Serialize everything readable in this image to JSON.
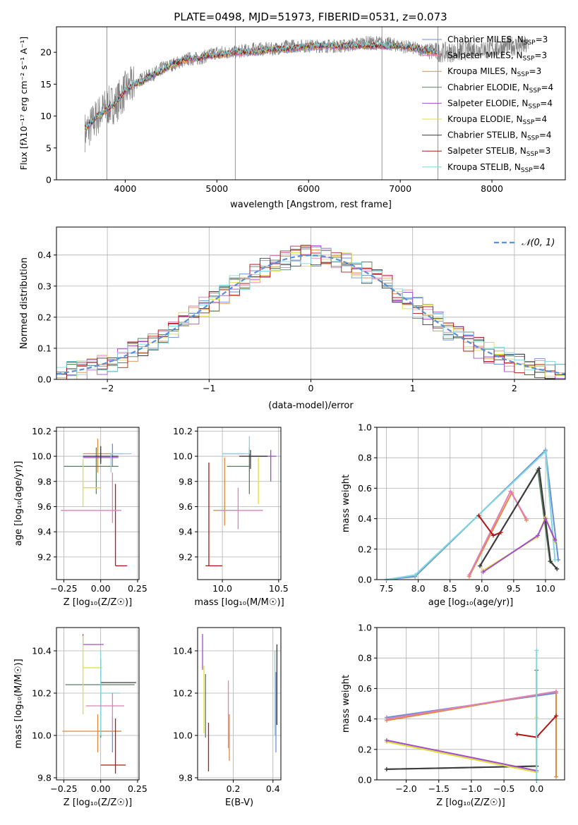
{
  "figure": {
    "title": "PLATE=0498, MJD=51973, FIBERID=0531, z=0.073"
  },
  "series_styles": [
    {
      "name": "Chabrier MILES",
      "nssp": "3",
      "color": "#6b8ed8"
    },
    {
      "name": "Salpeter MILES",
      "nssp": "3",
      "color": "#e07fb8"
    },
    {
      "name": "Kroupa MILES",
      "nssp": "3",
      "color": "#e58a3c"
    },
    {
      "name": "Chabrier ELODIE",
      "nssp": "4",
      "color": "#5c7e60"
    },
    {
      "name": "Salpeter ELODIE",
      "nssp": "4",
      "color": "#a24ec9"
    },
    {
      "name": "Kroupa ELODIE",
      "nssp": "4",
      "color": "#dede3c"
    },
    {
      "name": "Chabrier STELIB",
      "nssp": "4",
      "color": "#3a3a3a"
    },
    {
      "name": "Salpeter STELIB",
      "nssp": "3",
      "color": "#b01818"
    },
    {
      "name": "Kroupa STELIB",
      "nssp": "4",
      "color": "#7fd6dc"
    }
  ],
  "chart_data": [
    {
      "id": "spectrum",
      "type": "line",
      "title": "PLATE=0498, MJD=51973, FIBERID=0531, z=0.073",
      "xlabel": "wavelength [Angstrom, rest frame]",
      "ylabel": "Flux [fλ10⁻¹⁷ erg cm⁻² s⁻¹ A⁻¹]",
      "xlim": [
        3250,
        8800
      ],
      "ylim": [
        0,
        24
      ],
      "xticks": [
        "4000",
        "5000",
        "6000",
        "7000",
        "8000"
      ],
      "yticks": [
        "0",
        "5",
        "10",
        "15",
        "20"
      ],
      "legend": "right",
      "data_color": "#7f7f7f",
      "data_curve": {
        "x": [
          3560,
          3600,
          3700,
          3800,
          3900,
          4000,
          4100,
          4200,
          4300,
          4400,
          4500,
          4600,
          4700,
          4800,
          4900,
          5000,
          5200,
          5400,
          5600,
          5800,
          6000,
          6200,
          6400,
          6600,
          6800,
          7000,
          7200,
          7400,
          7600,
          7800,
          8000,
          8200,
          8400
        ],
        "y": [
          7.5,
          8,
          10,
          11.5,
          12,
          14,
          15,
          16,
          16.5,
          17.5,
          18,
          18.5,
          19,
          19,
          19.5,
          20,
          20,
          20.5,
          20.5,
          21,
          21,
          21,
          21,
          21.5,
          21.5,
          21,
          20.5,
          20,
          20,
          20.5,
          20.5,
          21,
          21
        ]
      },
      "model_curve": {
        "x": [
          3560,
          3600,
          3700,
          3800,
          3900,
          4000,
          4100,
          4200,
          4300,
          4400,
          4500,
          4600,
          4700,
          4800,
          4900,
          5000,
          5200,
          5400,
          5600,
          5800,
          6000,
          6200,
          6400,
          6600,
          6800,
          7000,
          7200,
          7400
        ],
        "y": [
          8,
          8.5,
          10,
          11,
          12,
          14,
          15,
          15.5,
          16.5,
          17,
          18,
          18.5,
          19,
          19,
          19.5,
          19.5,
          20,
          20,
          20.5,
          20.5,
          21,
          21,
          21,
          21,
          21,
          21,
          20.5,
          20
        ]
      }
    },
    {
      "id": "residuals",
      "type": "histogram",
      "xlabel": "(data-model)/error",
      "ylabel": "Normed distribution",
      "xlim": [
        -2.5,
        2.5
      ],
      "ylim": [
        0,
        0.49
      ],
      "xticks": [
        "−2",
        "−1",
        "0",
        "1",
        "2"
      ],
      "yticks": [
        "0.0",
        "0.1",
        "0.2",
        "0.3",
        "0.4"
      ],
      "legend_label": "𝒩(0, 1)",
      "legend_color": "#5b8fd6"
    },
    {
      "id": "age-vs-Z",
      "type": "errorbar",
      "xlabel": "Z [log₁₀(Z/Z☉)]",
      "ylabel": "age  [log₁₀(age/yr)]",
      "xlim": [
        -0.3,
        0.26
      ],
      "ylim": [
        9.02,
        10.23
      ],
      "xticks": [
        -0.25,
        0.0,
        0.25
      ],
      "xticklabels": [
        "−0.25",
        "0.00",
        "0.25"
      ],
      "yticks": [
        9.2,
        9.4,
        9.6,
        9.8,
        10.0,
        10.2
      ],
      "yticklabels": [
        "9.2",
        "9.4",
        "9.6",
        "9.8",
        "10.0",
        "10.2"
      ],
      "points": [
        {
          "s": 0,
          "x": 0.08,
          "y": 10.02,
          "xe": [
            0.05,
            0.07
          ],
          "ye": [
            0.1,
            0.08
          ]
        },
        {
          "s": 2,
          "x": -0.02,
          "y": 10.02,
          "xe": [
            0.1,
            0.1
          ],
          "ye": [
            0.15,
            0.12
          ]
        },
        {
          "s": 3,
          "x": -0.03,
          "y": 9.92,
          "xe": [
            0.22,
            0.15
          ],
          "ye": [
            0.22,
            0.15
          ]
        },
        {
          "s": 4,
          "x": 0.0,
          "y": 9.99,
          "xe": [
            0.12,
            0.12
          ],
          "ye": [
            0.03,
            0.04
          ]
        },
        {
          "s": 5,
          "x": -0.12,
          "y": 9.75,
          "xe": [
            0.0,
            0.12
          ],
          "ye": [
            0.15,
            0.23
          ]
        },
        {
          "s": 6,
          "x": 0.0,
          "y": 10.0,
          "xe": [
            0.12,
            0.12
          ],
          "ye": [
            0.06,
            0.08
          ]
        },
        {
          "s": 7,
          "x": 0.1,
          "y": 9.13,
          "xe": [
            0.0,
            0.08
          ],
          "ye": [
            0.0,
            0.65
          ]
        },
        {
          "s": 8,
          "x": 0.07,
          "y": 10.02,
          "xe": [
            0.0,
            0.14
          ],
          "ye": [
            0.15,
            0.0
          ]
        },
        {
          "s": 1,
          "x": 0.08,
          "y": 9.57,
          "xe": [
            0.35,
            0.06
          ],
          "ye": [
            0.1,
            0.3
          ]
        }
      ]
    },
    {
      "id": "age-vs-mass",
      "type": "errorbar",
      "xlabel": "mass [log₁₀(M/M☉)]",
      "ylabel": "",
      "xlim": [
        9.78,
        10.52
      ],
      "ylim": [
        9.02,
        10.23
      ],
      "xticks": [
        10.0,
        10.5
      ],
      "xticklabels": [
        "10.0",
        "10.5"
      ],
      "yticks": [
        9.2,
        9.4,
        9.6,
        9.8,
        10.0,
        10.2
      ],
      "yticklabels": [
        "9.2",
        "9.4",
        "9.6",
        "9.8",
        "10.0",
        "10.2"
      ],
      "points": [
        {
          "s": 0,
          "x": 10.2,
          "y": 10.02,
          "xe": [
            0.2,
            0.0
          ],
          "ye": [
            0.0,
            0.0
          ]
        },
        {
          "s": 2,
          "x": 10.02,
          "y": 9.57,
          "xe": [
            0.1,
            0.12
          ],
          "ye": [
            0.12,
            0.42
          ]
        },
        {
          "s": 3,
          "x": 10.24,
          "y": 9.92,
          "xe": [
            0.2,
            0.0
          ],
          "ye": [
            0.22,
            0.15
          ]
        },
        {
          "s": 4,
          "x": 10.43,
          "y": 10.0,
          "xe": [
            0.17,
            0.05
          ],
          "ye": [
            0.2,
            0.05
          ]
        },
        {
          "s": 5,
          "x": 10.32,
          "y": 9.99,
          "xe": [
            0.0,
            0.0
          ],
          "ye": [
            0.37,
            0.0
          ]
        },
        {
          "s": 6,
          "x": 10.25,
          "y": 10.0,
          "xe": [
            0.1,
            0.15
          ],
          "ye": [
            0.1,
            0.05
          ]
        },
        {
          "s": 7,
          "x": 9.88,
          "y": 9.13,
          "xe": [
            0.03,
            0.12
          ],
          "ye": [
            0.0,
            0.82
          ]
        },
        {
          "s": 8,
          "x": 10.24,
          "y": 10.02,
          "xe": [
            0.24,
            0.0
          ],
          "ye": [
            0.0,
            0.14
          ]
        },
        {
          "s": 1,
          "x": 10.14,
          "y": 9.57,
          "xe": [
            0.18,
            0.22
          ],
          "ye": [
            0.15,
            0.18
          ]
        }
      ]
    },
    {
      "id": "weight-vs-age",
      "type": "line",
      "xlabel": "age  [log₁₀(age/yr)]",
      "ylabel": "mass weight",
      "xlim": [
        7.35,
        10.3
      ],
      "ylim": [
        0,
        1
      ],
      "xticks": [
        7.5,
        8.0,
        8.5,
        9.0,
        9.5,
        10.0
      ],
      "xticklabels": [
        "7.5",
        "8.0",
        "8.5",
        "9.0",
        "9.5",
        "10.0"
      ],
      "yticks": [
        0.0,
        0.2,
        0.4,
        0.6,
        0.8,
        1.0
      ],
      "yticklabels": [
        "0.0",
        "0.2",
        "0.4",
        "0.6",
        "0.8",
        "1.0"
      ],
      "series": [
        {
          "s": 0,
          "x": [
            7.5,
            7.95,
            10.0,
            10.2
          ],
          "y": [
            0.0,
            0.02,
            0.85,
            0.13
          ]
        },
        {
          "s": 8,
          "x": [
            7.5,
            7.95,
            10.0,
            10.15
          ],
          "y": [
            0.0,
            0.03,
            0.84,
            0.13
          ]
        },
        {
          "s": 2,
          "x": [
            8.8,
            9.47,
            9.7
          ],
          "y": [
            0.02,
            0.57,
            0.39
          ]
        },
        {
          "s": 1,
          "x": [
            8.8,
            9.45,
            9.7
          ],
          "y": [
            0.03,
            0.58,
            0.4
          ]
        },
        {
          "s": 3,
          "x": [
            8.97,
            9.88,
            10.07,
            10.18
          ],
          "y": [
            0.09,
            0.72,
            0.12,
            0.07
          ]
        },
        {
          "s": 6,
          "x": [
            8.97,
            9.9,
            10.08,
            10.18
          ],
          "y": [
            0.09,
            0.73,
            0.12,
            0.07
          ]
        },
        {
          "s": 5,
          "x": [
            9.02,
            9.87,
            10.0,
            10.15
          ],
          "y": [
            0.06,
            0.28,
            0.41,
            0.25
          ]
        },
        {
          "s": 4,
          "x": [
            9.02,
            9.88,
            10.0,
            10.15
          ],
          "y": [
            0.05,
            0.29,
            0.4,
            0.26
          ]
        },
        {
          "s": 7,
          "x": [
            8.95,
            9.18,
            9.3
          ],
          "y": [
            0.42,
            0.29,
            0.31
          ]
        }
      ]
    },
    {
      "id": "mass-vs-Z",
      "type": "errorbar",
      "xlabel": "Z [log₁₀(Z/Z☉)]",
      "ylabel": "mass [log₁₀(M/M☉)]",
      "xlim": [
        -0.3,
        0.26
      ],
      "ylim": [
        9.79,
        10.51
      ],
      "xticks": [
        -0.25,
        0.0,
        0.25
      ],
      "xticklabels": [
        "−0.25",
        "0.00",
        "0.25"
      ],
      "yticks": [
        9.8,
        10.0,
        10.2,
        10.4
      ],
      "yticklabels": [
        "9.8",
        "10.0",
        "10.2",
        "10.4"
      ],
      "points": [
        {
          "s": 0,
          "x": 0.08,
          "y": 10.02,
          "xe": [
            0.1,
            0.06
          ],
          "ye": [
            0.1,
            0.07
          ]
        },
        {
          "s": 2,
          "x": -0.02,
          "y": 10.02,
          "xe": [
            0.24,
            0.16
          ],
          "ye": [
            0.1,
            0.08
          ]
        },
        {
          "s": 3,
          "x": 0.0,
          "y": 10.24,
          "xe": [
            0.24,
            0.23
          ],
          "ye": [
            0.25,
            0.12
          ]
        },
        {
          "s": 4,
          "x": -0.12,
          "y": 10.43,
          "xe": [
            0.0,
            0.14
          ],
          "ye": [
            0.0,
            0.05
          ]
        },
        {
          "s": 5,
          "x": -0.12,
          "y": 10.32,
          "xe": [
            0.0,
            0.13
          ],
          "ye": [
            0.22,
            0.15
          ]
        },
        {
          "s": 6,
          "x": 0.0,
          "y": 10.25,
          "xe": [
            0.0,
            0.24
          ],
          "ye": [
            0.0,
            0.0
          ]
        },
        {
          "s": 7,
          "x": 0.1,
          "y": 9.86,
          "xe": [
            0.1,
            0.07
          ],
          "ye": [
            0.04,
            0.22
          ]
        },
        {
          "s": 8,
          "x": 0.0,
          "y": 10.2,
          "xe": [
            0.0,
            0.13
          ],
          "ye": [
            0.2,
            0.2
          ]
        },
        {
          "s": 1,
          "x": 0.08,
          "y": 10.14,
          "xe": [
            0.18,
            0.08
          ],
          "ye": [
            0.12,
            0.06
          ]
        }
      ]
    },
    {
      "id": "mass-vs-ebv",
      "type": "errorbar",
      "xlabel": "E(B-V)",
      "ylabel": "",
      "xlim": [
        0.02,
        0.44
      ],
      "ylim": [
        9.79,
        10.51
      ],
      "xticks": [
        0.2,
        0.4
      ],
      "xticklabels": [
        "0.2",
        "0.4"
      ],
      "yticks": [
        9.8,
        10.0,
        10.2,
        10.4
      ],
      "yticklabels": [
        "9.8",
        "10.0",
        "10.2",
        "10.4"
      ],
      "points": [
        {
          "s": 0,
          "x": 0.415,
          "y": 10.1,
          "xe": [
            0,
            0
          ],
          "ye": [
            0.18,
            0.2
          ]
        },
        {
          "s": 2,
          "x": 0.18,
          "y": 10.02,
          "xe": [
            0,
            0
          ],
          "ye": [
            0.14,
            0.08
          ]
        },
        {
          "s": 3,
          "x": 0.06,
          "y": 10.24,
          "xe": [
            0,
            0
          ],
          "ye": [
            0.25,
            0.05
          ]
        },
        {
          "s": 4,
          "x": 0.045,
          "y": 10.36,
          "xe": [
            0,
            0
          ],
          "ye": [
            0.05,
            0.12
          ]
        },
        {
          "s": 5,
          "x": 0.052,
          "y": 10.13,
          "xe": [
            0,
            0
          ],
          "ye": [
            0.12,
            0.2
          ]
        },
        {
          "s": 6,
          "x": 0.42,
          "y": 10.25,
          "xe": [
            0,
            0
          ],
          "ye": [
            0.2,
            0.18
          ]
        },
        {
          "s": 7,
          "x": 0.075,
          "y": 9.86,
          "xe": [
            0,
            0
          ],
          "ye": [
            0.03,
            0.2
          ]
        },
        {
          "s": 8,
          "x": 0.41,
          "y": 10.2,
          "xe": [
            0,
            0
          ],
          "ye": [
            0.2,
            0.2
          ]
        },
        {
          "s": 1,
          "x": 0.175,
          "y": 10.14,
          "xe": [
            0,
            0
          ],
          "ye": [
            0.2,
            0.12
          ]
        }
      ]
    },
    {
      "id": "weight-vs-Z",
      "type": "line",
      "xlabel": "Z [log₁₀(Z/Z☉)]",
      "ylabel": "mass weight",
      "xlim": [
        -2.45,
        0.43
      ],
      "ylim": [
        0,
        1
      ],
      "xticks": [
        -2.0,
        -1.5,
        -1.0,
        -0.5,
        0.0
      ],
      "xticklabels": [
        "−2.0",
        "−1.5",
        "−1.0",
        "−0.5",
        "0.0"
      ],
      "yticks": [
        0.0,
        0.2,
        0.4,
        0.6,
        0.8,
        1.0
      ],
      "yticklabels": [
        "0.0",
        "0.2",
        "0.4",
        "0.6",
        "0.8",
        "1.0"
      ],
      "series": [
        {
          "s": 0,
          "x": [
            -2.3,
            0.3
          ],
          "y": [
            0.41,
            0.57
          ]
        },
        {
          "s": 2,
          "x": [
            -2.3,
            0.3,
            0.3
          ],
          "y": [
            0.39,
            0.58,
            0.02
          ]
        },
        {
          "s": 1,
          "x": [
            -2.3,
            0.3
          ],
          "y": [
            0.4,
            0.58
          ]
        },
        {
          "s": 3,
          "x": [
            -2.3,
            0.0,
            0.0
          ],
          "y": [
            0.07,
            0.09,
            0.72
          ]
        },
        {
          "s": 6,
          "x": [
            -2.3,
            0.0
          ],
          "y": [
            0.07,
            0.09
          ]
        },
        {
          "s": 5,
          "x": [
            -2.3,
            0.0,
            0.0
          ],
          "y": [
            0.25,
            0.05,
            0.41
          ]
        },
        {
          "s": 4,
          "x": [
            -2.3,
            0.0
          ],
          "y": [
            0.26,
            0.06
          ]
        },
        {
          "s": 7,
          "x": [
            -0.3,
            0.0,
            0.3
          ],
          "y": [
            0.3,
            0.28,
            0.42
          ]
        },
        {
          "s": 8,
          "x": [
            0.0,
            0.0
          ],
          "y": [
            0.0,
            0.85
          ]
        }
      ]
    }
  ]
}
